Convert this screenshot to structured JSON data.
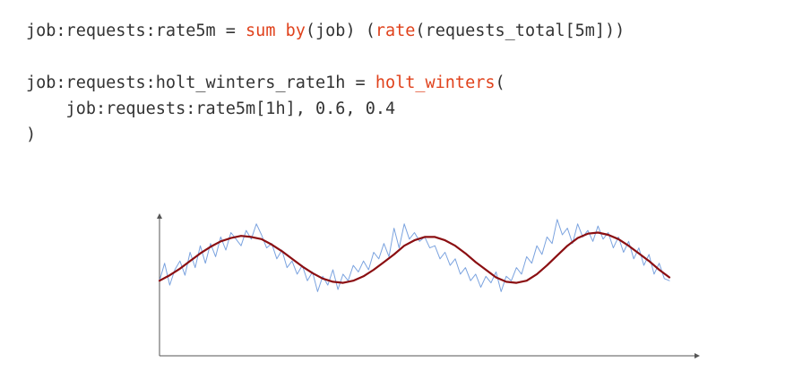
{
  "code": {
    "lines": [
      [
        {
          "text": "job:requests:rate5m = ",
          "kind": "plain"
        },
        {
          "text": "sum",
          "kind": "fn"
        },
        {
          "text": " ",
          "kind": "plain"
        },
        {
          "text": "by",
          "kind": "fn"
        },
        {
          "text": "(job) (",
          "kind": "plain"
        },
        {
          "text": "rate",
          "kind": "fn"
        },
        {
          "text": "(requests_total[5m]))",
          "kind": "plain"
        }
      ],
      [],
      [
        {
          "text": "job:requests:holt_winters_rate1h = ",
          "kind": "plain"
        },
        {
          "text": "holt_winters",
          "kind": "fn"
        },
        {
          "text": "(",
          "kind": "plain"
        }
      ],
      [
        {
          "text": "    job:requests:rate5m[1h], 0.6, 0.4",
          "kind": "plain"
        }
      ],
      [
        {
          "text": ")",
          "kind": "plain"
        }
      ]
    ],
    "colors": {
      "plain": "#333333",
      "fn": "#e0421c"
    }
  },
  "chart_data": {
    "type": "line",
    "title": "",
    "xlabel": "",
    "ylabel": "",
    "axis_arrows": true,
    "ticks": false,
    "grid": false,
    "x_range": [
      0,
      1
    ],
    "y_range": [
      0,
      1
    ],
    "series": [
      {
        "role": "raw",
        "color": "#7ba3df",
        "x": [
          0.0,
          0.01,
          0.02,
          0.03,
          0.04,
          0.05,
          0.06,
          0.07,
          0.08,
          0.09,
          0.1,
          0.11,
          0.12,
          0.13,
          0.14,
          0.15,
          0.16,
          0.17,
          0.18,
          0.19,
          0.2,
          0.21,
          0.22,
          0.23,
          0.24,
          0.25,
          0.26,
          0.27,
          0.28,
          0.29,
          0.3,
          0.31,
          0.32,
          0.33,
          0.34,
          0.35,
          0.36,
          0.37,
          0.38,
          0.39,
          0.4,
          0.41,
          0.42,
          0.43,
          0.44,
          0.45,
          0.46,
          0.47,
          0.48,
          0.49,
          0.5,
          0.51,
          0.52,
          0.53,
          0.54,
          0.55,
          0.56,
          0.57,
          0.58,
          0.59,
          0.6,
          0.61,
          0.62,
          0.63,
          0.64,
          0.65,
          0.66,
          0.67,
          0.68,
          0.69,
          0.7,
          0.71,
          0.72,
          0.73,
          0.74,
          0.75,
          0.76,
          0.77,
          0.78,
          0.79,
          0.8,
          0.81,
          0.82,
          0.83,
          0.84,
          0.85,
          0.86,
          0.87,
          0.88,
          0.89,
          0.9,
          0.91,
          0.92,
          0.93,
          0.94,
          0.95,
          0.96,
          0.97,
          0.98,
          0.99,
          1.0
        ],
        "y": [
          0.4,
          0.56,
          0.36,
          0.5,
          0.58,
          0.45,
          0.66,
          0.52,
          0.72,
          0.56,
          0.74,
          0.62,
          0.8,
          0.68,
          0.84,
          0.78,
          0.72,
          0.86,
          0.78,
          0.92,
          0.82,
          0.7,
          0.74,
          0.6,
          0.68,
          0.52,
          0.58,
          0.46,
          0.54,
          0.4,
          0.48,
          0.3,
          0.44,
          0.36,
          0.5,
          0.32,
          0.46,
          0.4,
          0.54,
          0.48,
          0.58,
          0.5,
          0.66,
          0.6,
          0.74,
          0.62,
          0.88,
          0.7,
          0.92,
          0.78,
          0.84,
          0.76,
          0.8,
          0.7,
          0.72,
          0.6,
          0.66,
          0.54,
          0.6,
          0.46,
          0.52,
          0.4,
          0.46,
          0.34,
          0.44,
          0.38,
          0.48,
          0.3,
          0.44,
          0.4,
          0.52,
          0.46,
          0.62,
          0.56,
          0.72,
          0.64,
          0.8,
          0.74,
          0.96,
          0.82,
          0.88,
          0.74,
          0.92,
          0.8,
          0.86,
          0.76,
          0.9,
          0.78,
          0.84,
          0.7,
          0.8,
          0.66,
          0.76,
          0.6,
          0.7,
          0.54,
          0.64,
          0.46,
          0.56,
          0.42,
          0.4
        ]
      },
      {
        "role": "smoothed",
        "color": "#8b0f12",
        "x": [
          0.0,
          0.02,
          0.04,
          0.06,
          0.08,
          0.1,
          0.12,
          0.14,
          0.16,
          0.18,
          0.2,
          0.22,
          0.24,
          0.26,
          0.28,
          0.3,
          0.32,
          0.34,
          0.36,
          0.38,
          0.4,
          0.42,
          0.44,
          0.46,
          0.48,
          0.5,
          0.52,
          0.54,
          0.56,
          0.58,
          0.6,
          0.62,
          0.64,
          0.66,
          0.68,
          0.7,
          0.72,
          0.74,
          0.76,
          0.78,
          0.8,
          0.82,
          0.84,
          0.86,
          0.88,
          0.9,
          0.92,
          0.94,
          0.96,
          0.98,
          1.0
        ],
        "y": [
          0.4,
          0.45,
          0.51,
          0.58,
          0.65,
          0.71,
          0.76,
          0.79,
          0.81,
          0.8,
          0.78,
          0.73,
          0.67,
          0.6,
          0.53,
          0.47,
          0.42,
          0.39,
          0.38,
          0.4,
          0.44,
          0.5,
          0.57,
          0.64,
          0.72,
          0.77,
          0.8,
          0.8,
          0.77,
          0.72,
          0.65,
          0.57,
          0.5,
          0.43,
          0.39,
          0.38,
          0.4,
          0.46,
          0.54,
          0.63,
          0.72,
          0.79,
          0.83,
          0.84,
          0.82,
          0.78,
          0.72,
          0.65,
          0.58,
          0.5,
          0.43
        ]
      }
    ]
  }
}
